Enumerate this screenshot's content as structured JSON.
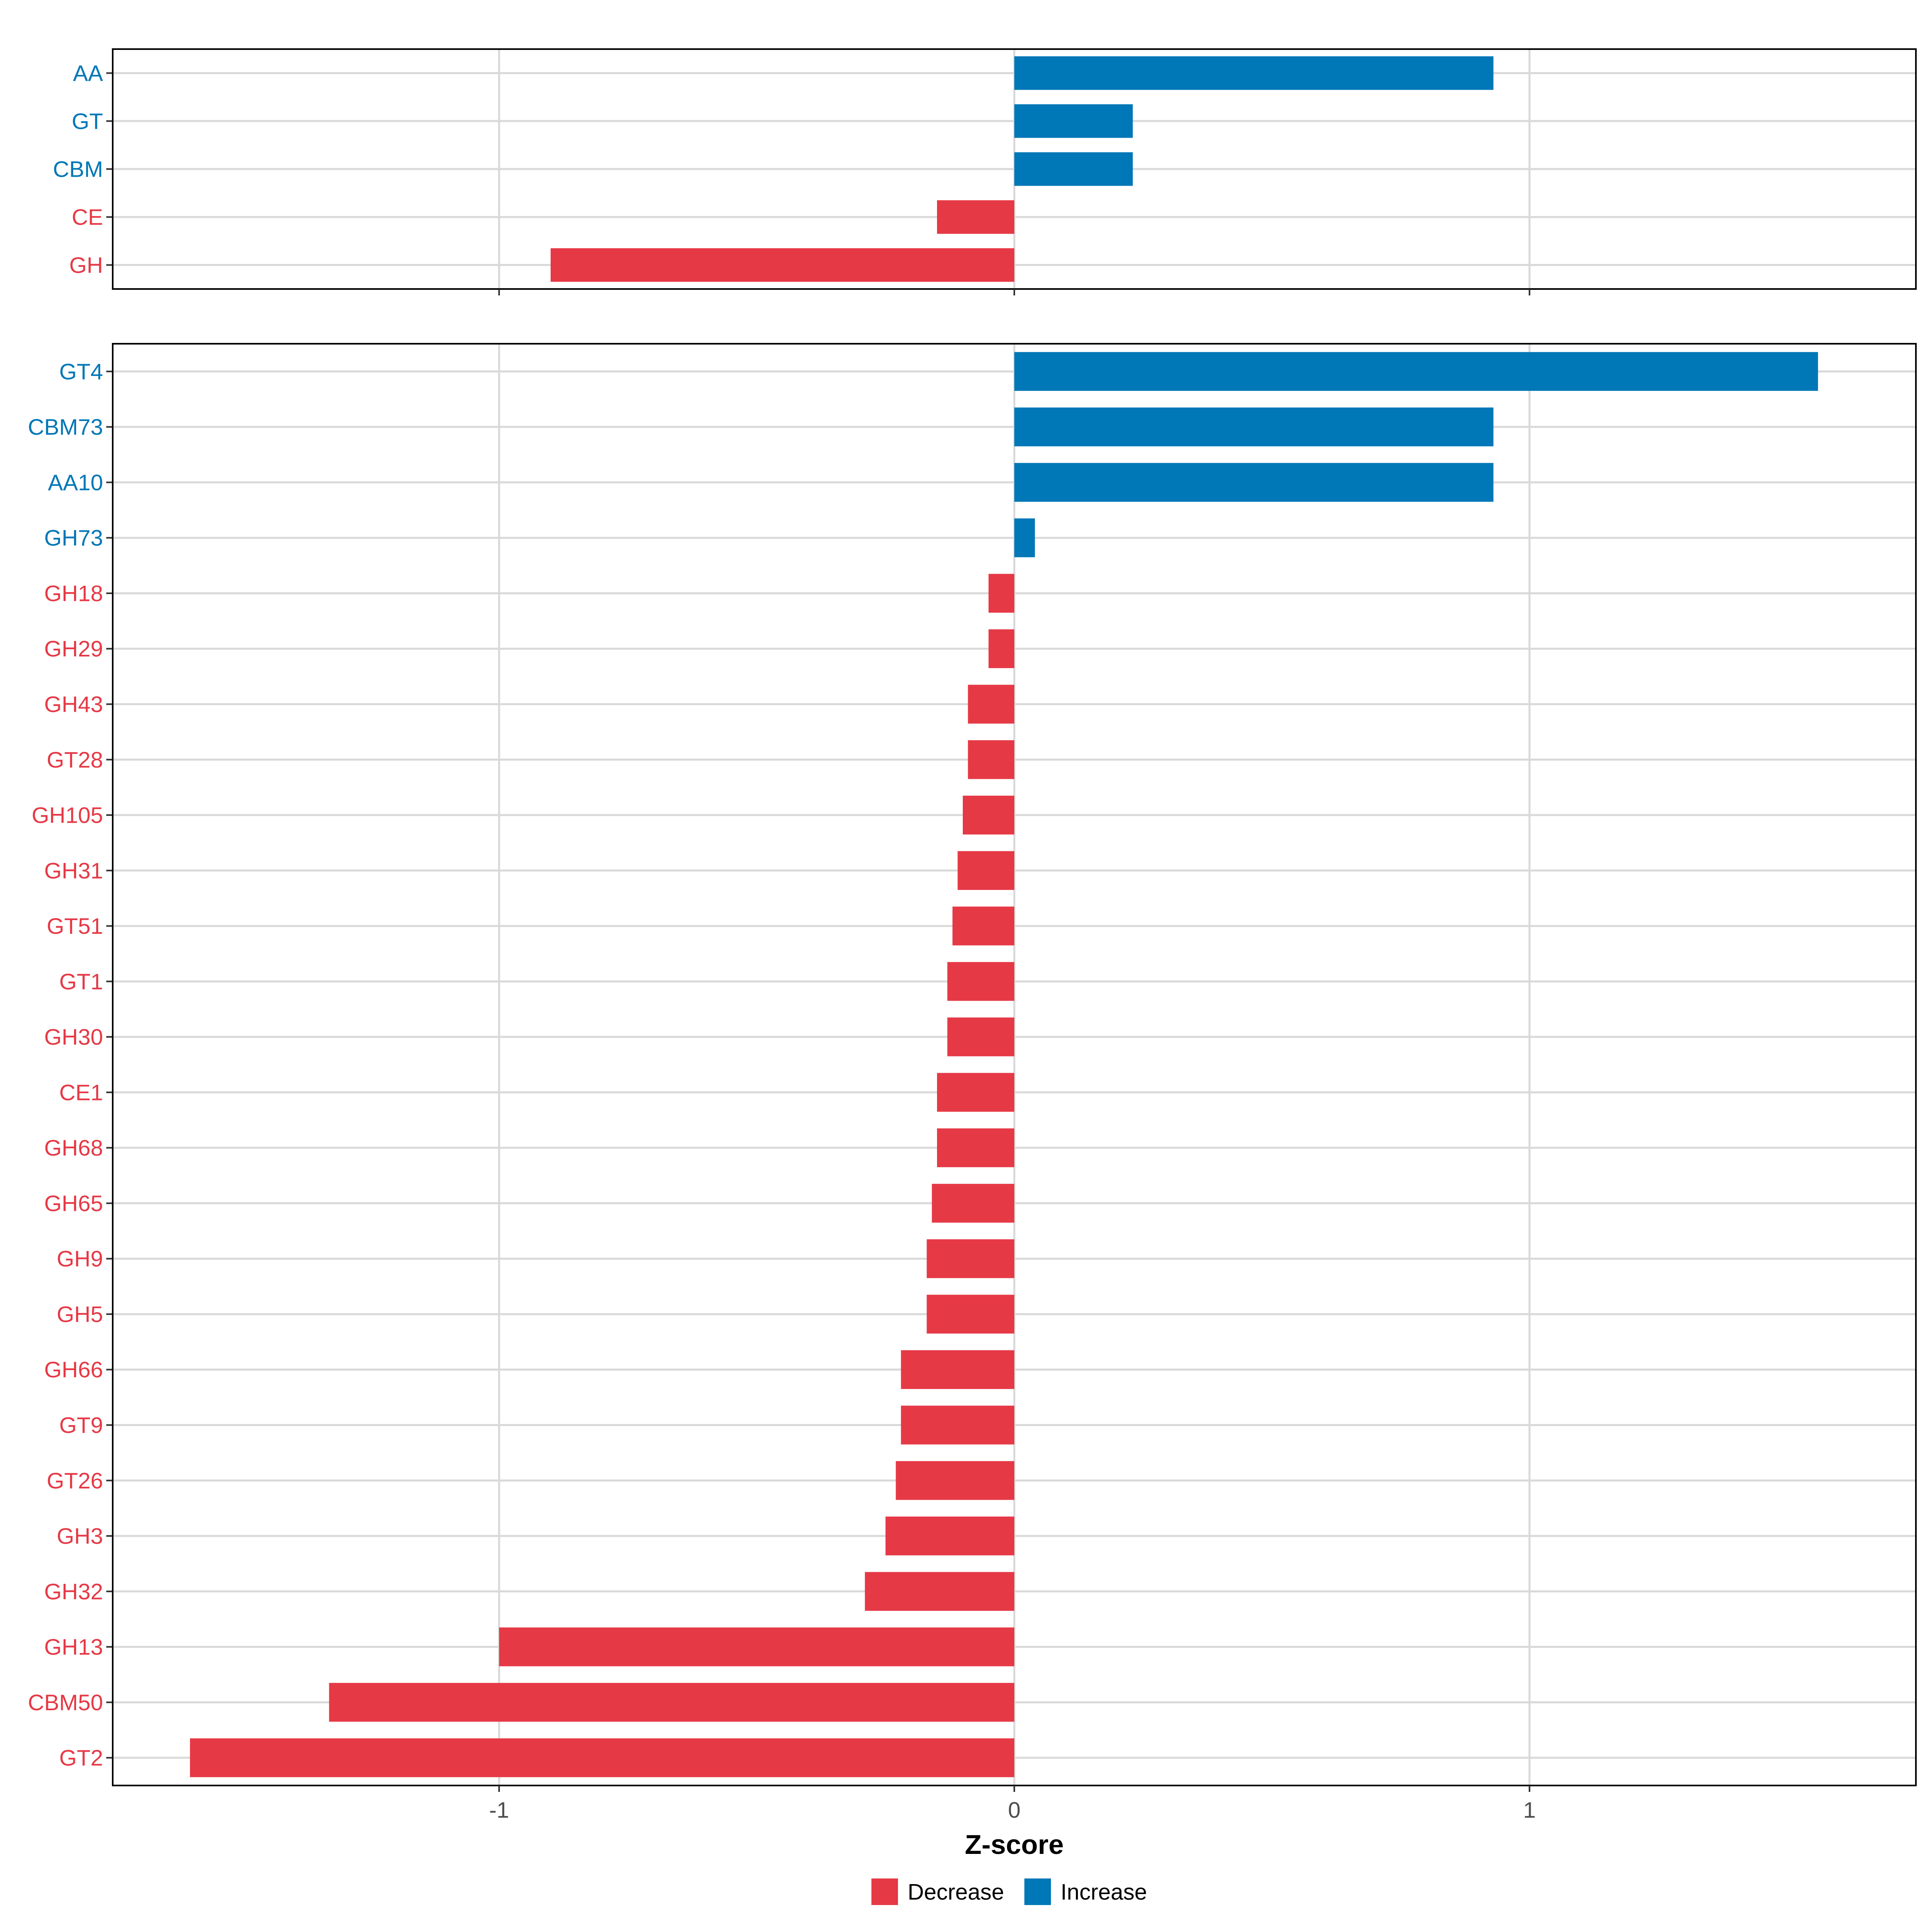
{
  "chart_data": [
    {
      "type": "bar",
      "orientation": "horizontal",
      "panel": "top",
      "categories": [
        "AA",
        "GT",
        "CBM",
        "CE",
        "GH"
      ],
      "values": [
        0.93,
        0.23,
        0.23,
        -0.15,
        -0.9
      ],
      "directions": [
        "Increase",
        "Increase",
        "Increase",
        "Decrease",
        "Decrease"
      ],
      "xlim": [
        -1.75,
        1.75
      ],
      "grid": true
    },
    {
      "type": "bar",
      "orientation": "horizontal",
      "panel": "bottom",
      "categories": [
        "GT4",
        "CBM73",
        "AA10",
        "GH73",
        "GH18",
        "GH29",
        "GH43",
        "GT28",
        "GH105",
        "GH31",
        "GT51",
        "GT1",
        "GH30",
        "CE1",
        "GH68",
        "GH65",
        "GH9",
        "GH5",
        "GH66",
        "GT9",
        "GT26",
        "GH3",
        "GH32",
        "GH13",
        "CBM50",
        "GT2"
      ],
      "values": [
        1.56,
        0.93,
        0.93,
        0.04,
        -0.05,
        -0.05,
        -0.09,
        -0.09,
        -0.1,
        -0.11,
        -0.12,
        -0.13,
        -0.13,
        -0.15,
        -0.15,
        -0.16,
        -0.17,
        -0.17,
        -0.22,
        -0.22,
        -0.23,
        -0.25,
        -0.29,
        -1.0,
        -1.33,
        -1.6
      ],
      "directions": [
        "Increase",
        "Increase",
        "Increase",
        "Increase",
        "Decrease",
        "Decrease",
        "Decrease",
        "Decrease",
        "Decrease",
        "Decrease",
        "Decrease",
        "Decrease",
        "Decrease",
        "Decrease",
        "Decrease",
        "Decrease",
        "Decrease",
        "Decrease",
        "Decrease",
        "Decrease",
        "Decrease",
        "Decrease",
        "Decrease",
        "Decrease",
        "Decrease",
        "Decrease"
      ],
      "xlim": [
        -1.75,
        1.75
      ],
      "xticks": [
        -1,
        0,
        1
      ],
      "xtick_labels": [
        "-1",
        "0",
        "1"
      ],
      "xlabel": "Z-score",
      "grid": true
    }
  ],
  "legend": {
    "placement": "bottom",
    "items": [
      {
        "label": "Decrease",
        "color": "#E63946"
      },
      {
        "label": "Increase",
        "color": "#0077B6"
      }
    ]
  },
  "colors": {
    "Decrease": "#E63946",
    "Increase": "#0077B6",
    "grid": "#D9D9D9",
    "frame": "#000000"
  }
}
